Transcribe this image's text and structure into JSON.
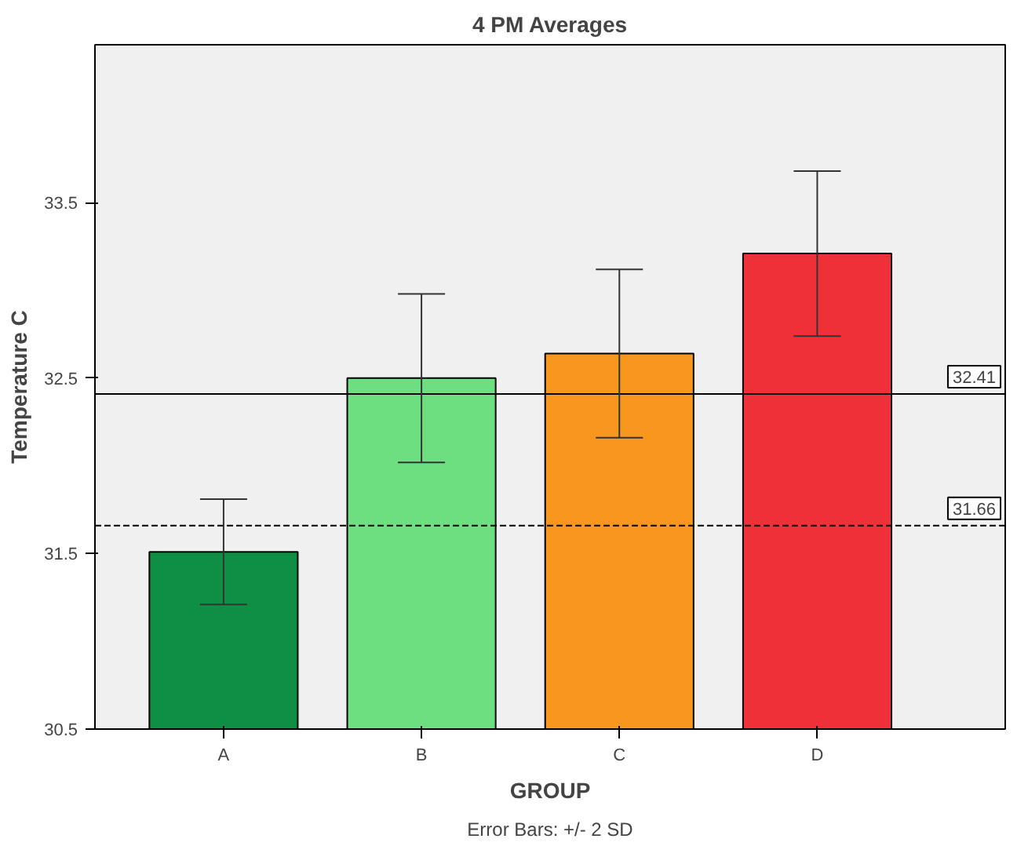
{
  "chart_data": {
    "type": "bar",
    "title": "4 PM Averages",
    "xlabel": "GROUP",
    "ylabel": "Temperature C",
    "categories": [
      "A",
      "B",
      "C",
      "D"
    ],
    "values": [
      31.51,
      32.5,
      32.64,
      33.21
    ],
    "colors": [
      "#0f8f45",
      "#6ddf80",
      "#f7971e",
      "#f03038"
    ],
    "errors": [
      0.3,
      0.48,
      0.48,
      0.47
    ],
    "ylim": [
      30.5,
      34.4
    ],
    "yticks": [
      30.5,
      31.5,
      32.5,
      33.5
    ],
    "grid": false,
    "ref_lines": [
      {
        "axis": "y",
        "value": 32.41,
        "label": "32.41",
        "line_style": "solid"
      },
      {
        "axis": "y",
        "value": 31.66,
        "label": "31.66",
        "line_style": "dashed"
      }
    ],
    "annotations": [
      "Error Bars: +/- 2 SD"
    ]
  }
}
